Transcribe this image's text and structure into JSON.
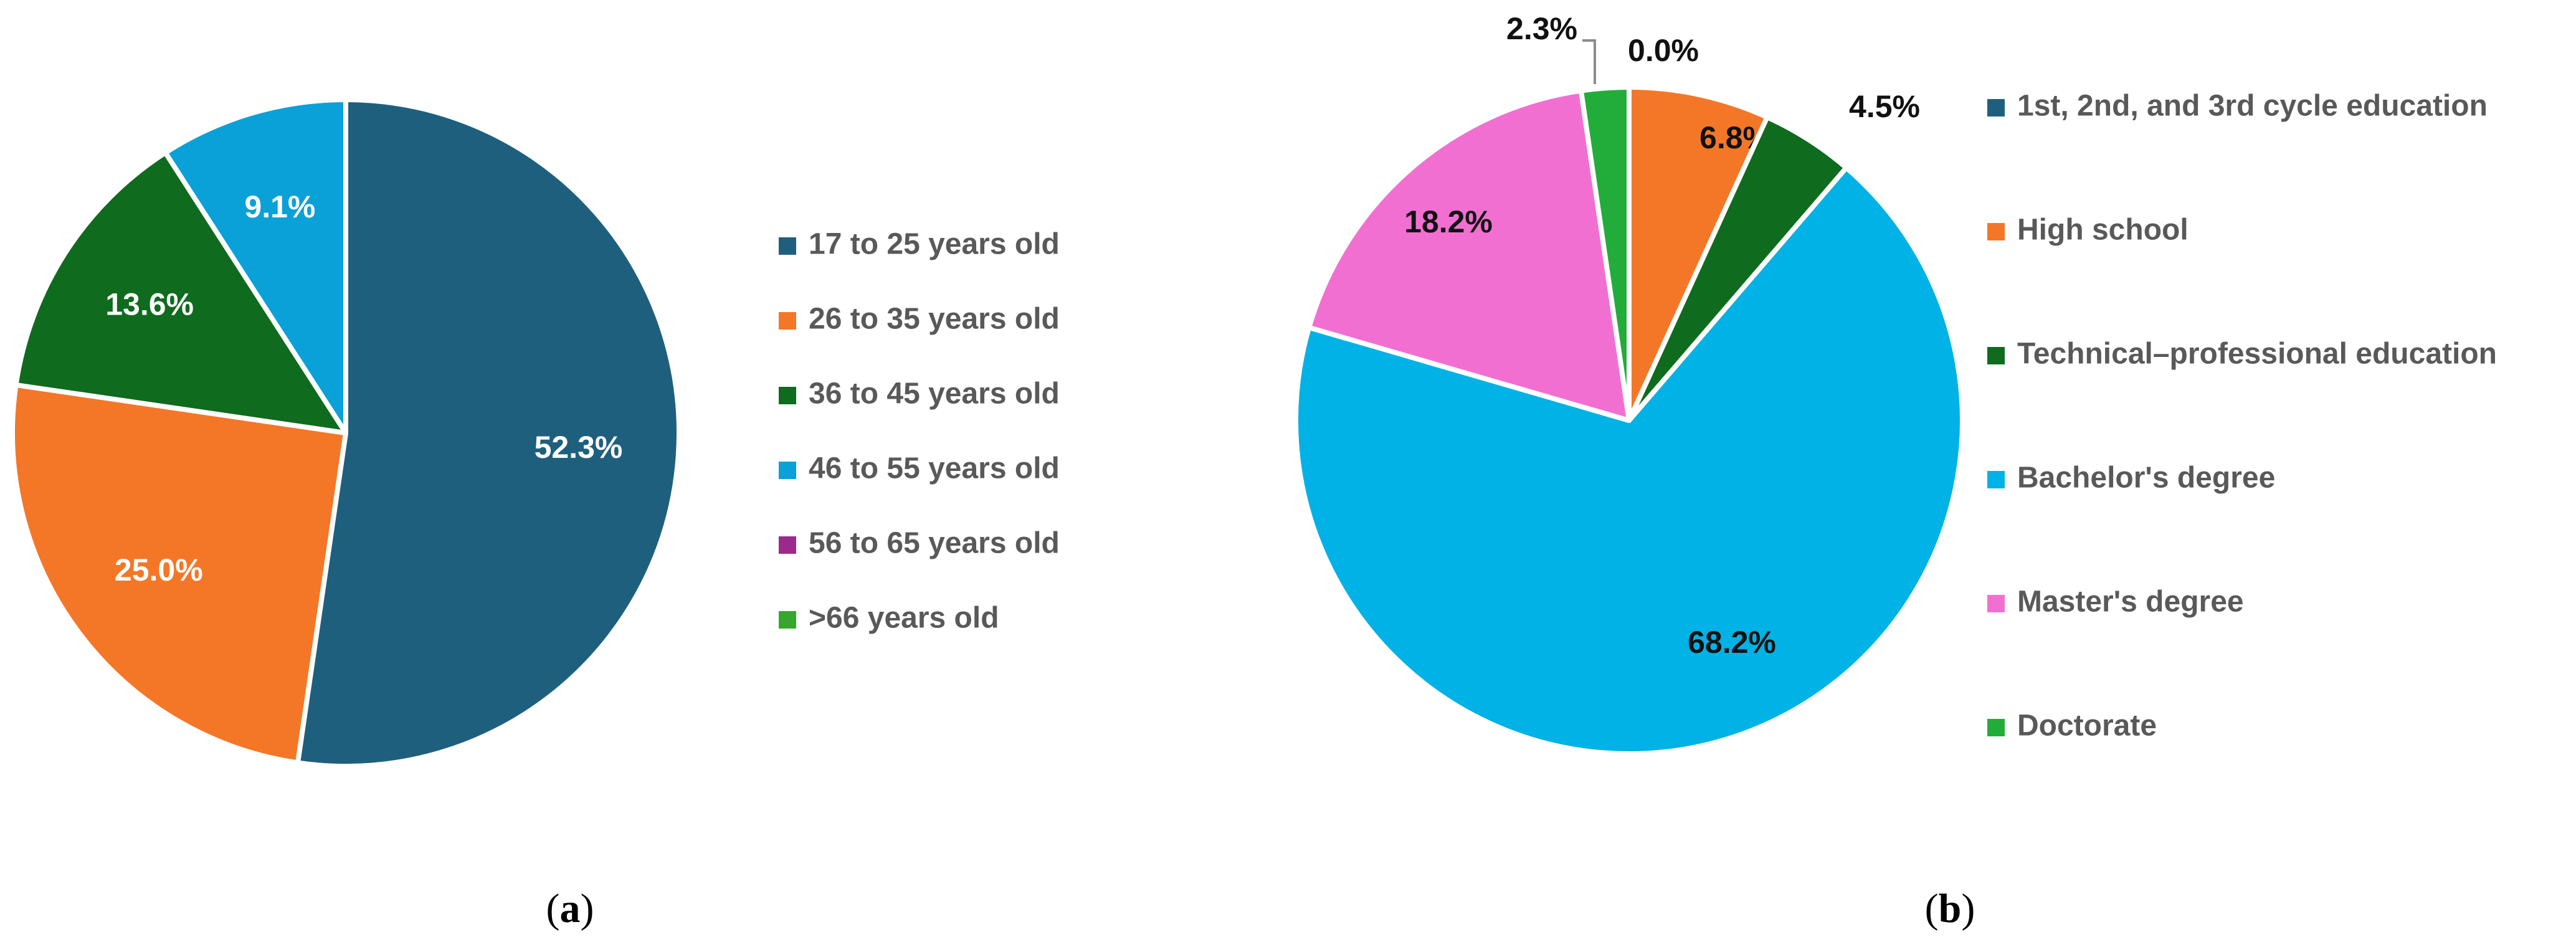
{
  "chart_data": [
    {
      "type": "pie",
      "panel_label": "a",
      "categories": [
        "17 to 25 years old",
        "26 to 35 years old",
        "36 to 45 years old",
        "46 to 55 years old",
        "56 to 65 years old",
        ">66 years old"
      ],
      "values": [
        52.3,
        25.0,
        13.6,
        9.1,
        0.0,
        0.0
      ],
      "data_labels": [
        "52.3%",
        "25.0%",
        "13.6%",
        "9.1%",
        "",
        ""
      ],
      "colors": [
        "#1f5f7e",
        "#f47727",
        "#0f6b1e",
        "#0aa0d8",
        "#9b2a8c",
        "#35a72b"
      ],
      "label_colors": [
        "#ffffff",
        "#ffffff",
        "#ffffff",
        "#ffffff",
        "#ffffff",
        "#ffffff"
      ],
      "legend_position": "right"
    },
    {
      "type": "pie",
      "panel_label": "b",
      "categories": [
        "1st, 2nd, and 3rd cycle education",
        "High school",
        "Technical–professional education",
        "Bachelor's degree",
        "Master's degree",
        "Doctorate"
      ],
      "values": [
        0.0,
        6.8,
        4.5,
        68.2,
        18.2,
        2.3
      ],
      "data_labels": [
        "0.0%",
        "6.8%",
        "4.5%",
        "68.2%",
        "18.2%",
        "2.3%"
      ],
      "colors": [
        "#1f5f7e",
        "#f47727",
        "#0f6b1e",
        "#00b2e5",
        "#f26fd2",
        "#22ad3a"
      ],
      "label_colors": [
        "#111111",
        "#111111",
        "#111111",
        "#111111",
        "#111111",
        "#111111"
      ],
      "legend_position": "right"
    }
  ]
}
